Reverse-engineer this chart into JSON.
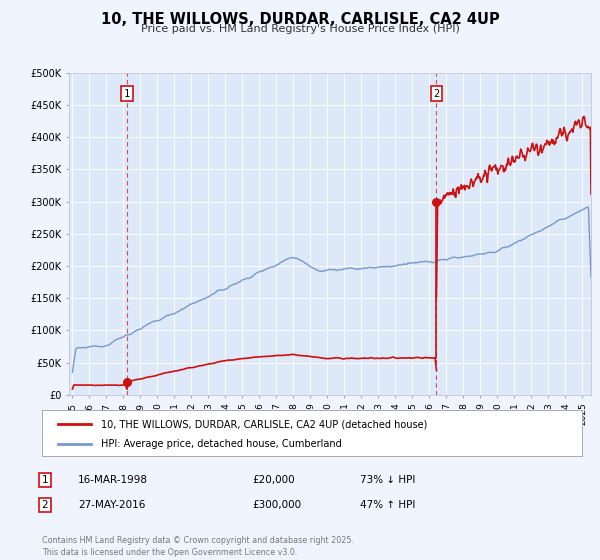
{
  "title": "10, THE WILLOWS, DURDAR, CARLISLE, CA2 4UP",
  "subtitle": "Price paid vs. HM Land Registry's House Price Index (HPI)",
  "background_color": "#f0f4ff",
  "plot_bg_color": "#dde8f8",
  "hpi_color": "#7799cc",
  "price_color": "#cc1111",
  "marker1_date": 1998.21,
  "marker1_price": 20000,
  "marker2_date": 2016.41,
  "marker2_price": 300000,
  "ylim": [
    0,
    500000
  ],
  "xlim": [
    1994.8,
    2025.5
  ],
  "yticks": [
    0,
    50000,
    100000,
    150000,
    200000,
    250000,
    300000,
    350000,
    400000,
    450000,
    500000
  ],
  "ytick_labels": [
    "£0",
    "£50K",
    "£100K",
    "£150K",
    "£200K",
    "£250K",
    "£300K",
    "£350K",
    "£400K",
    "£450K",
    "£500K"
  ],
  "xticks": [
    1995,
    1996,
    1997,
    1998,
    1999,
    2000,
    2001,
    2002,
    2003,
    2004,
    2005,
    2006,
    2007,
    2008,
    2009,
    2010,
    2011,
    2012,
    2013,
    2014,
    2015,
    2016,
    2017,
    2018,
    2019,
    2020,
    2021,
    2022,
    2023,
    2024,
    2025
  ],
  "legend_label1": "10, THE WILLOWS, DURDAR, CARLISLE, CA2 4UP (detached house)",
  "legend_label2": "HPI: Average price, detached house, Cumberland",
  "annotation1_label": "16-MAR-1998",
  "annotation1_price": "£20,000",
  "annotation1_hpi": "73% ↓ HPI",
  "annotation2_label": "27-MAY-2016",
  "annotation2_price": "£300,000",
  "annotation2_hpi": "47% ↑ HPI",
  "footer": "Contains HM Land Registry data © Crown copyright and database right 2025.\nThis data is licensed under the Open Government Licence v3.0."
}
